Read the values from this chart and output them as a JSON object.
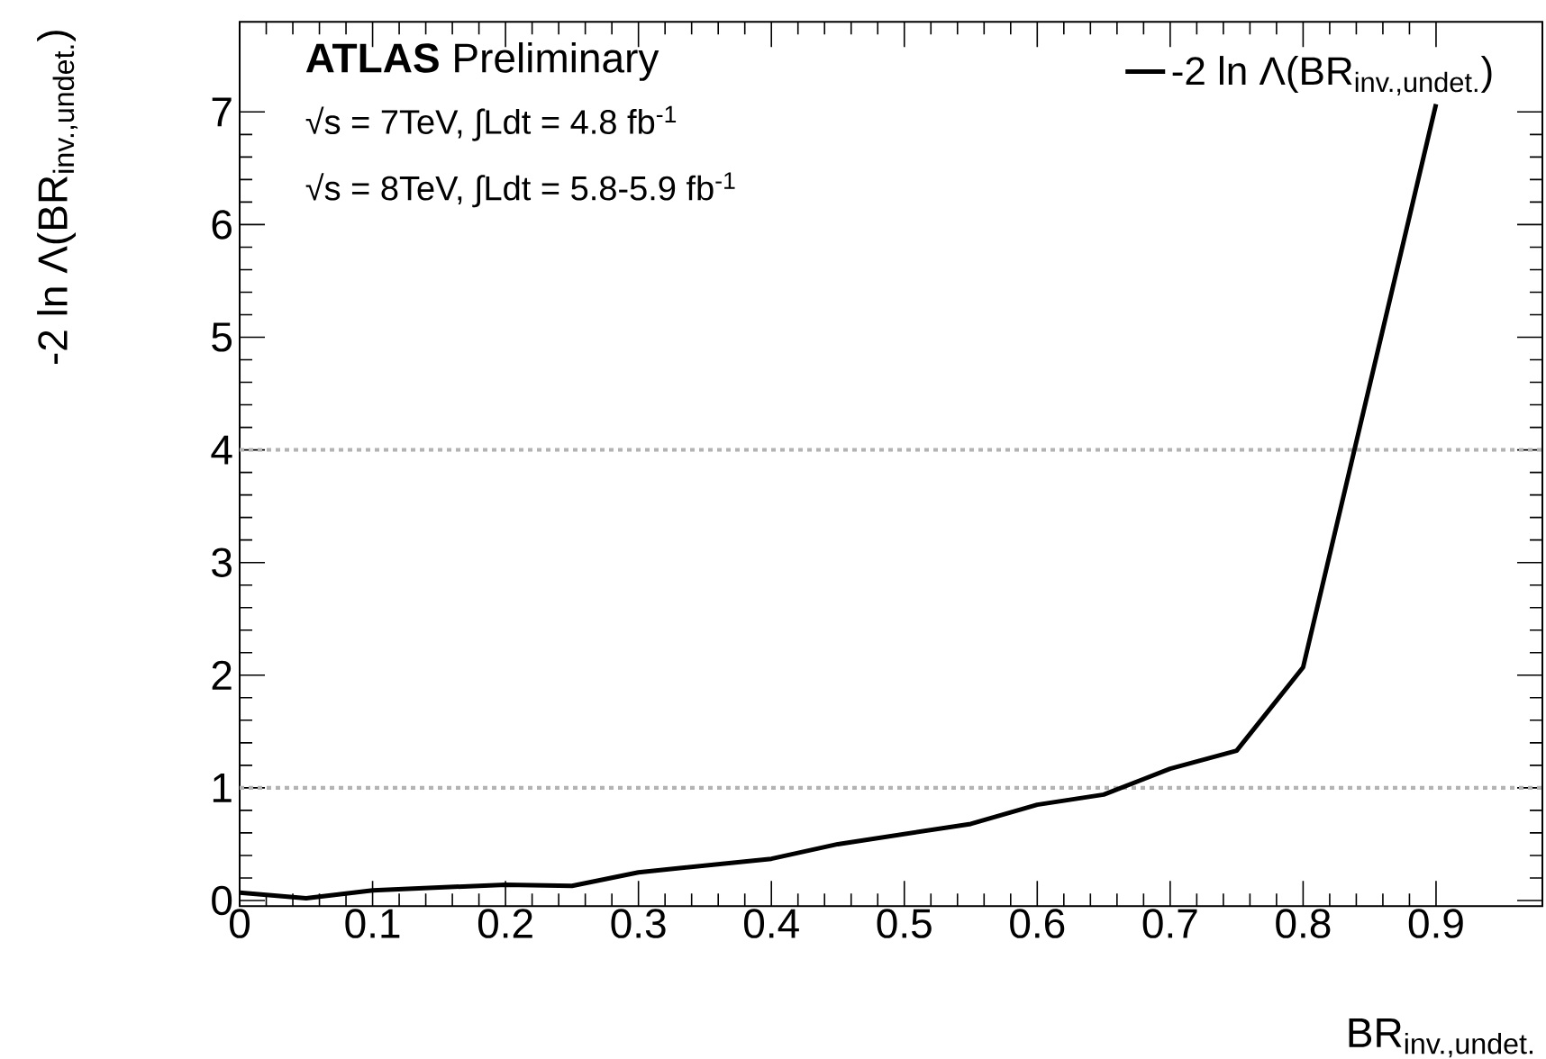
{
  "chart_data": {
    "type": "line",
    "xlabel": "BR$_{inv.,undet.}$",
    "ylabel": "-2 ln Λ(BR$_{inv.,undet.}$)",
    "annotations": [
      "**ATLAS** Preliminary",
      "√s = 7TeV, ∫Ldt = 4.8 fb$^{-1}$",
      "√s = 8TeV, ∫Ldt = 5.8-5.9 fb$^{-1}$"
    ],
    "x": [
      0,
      0.05,
      0.1,
      0.2,
      0.25,
      0.3,
      0.4,
      0.45,
      0.5,
      0.55,
      0.6,
      0.65,
      0.7,
      0.75,
      0.8,
      0.9
    ],
    "series": [
      {
        "name": "-2 ln Λ(BR$_{inv.,undet.}$)",
        "color": "#000000",
        "values": [
          0.07,
          0.02,
          0.09,
          0.14,
          0.13,
          0.25,
          0.37,
          0.5,
          0.59,
          0.68,
          0.85,
          0.94,
          1.17,
          1.33,
          2.07,
          7.07
        ]
      }
    ],
    "xlim": [
      0,
      0.98
    ],
    "ylim": [
      -0.05,
      7.8
    ],
    "xticks": [
      0,
      0.1,
      0.2,
      0.3,
      0.4,
      0.5,
      0.6,
      0.7,
      0.8,
      0.9
    ],
    "yticks": [
      0,
      1,
      2,
      3,
      4,
      5,
      6,
      7
    ],
    "ref_lines": [
      {
        "axis": "y",
        "value": 1,
        "color": "#b3b3b3",
        "line_style": "dotted"
      },
      {
        "axis": "y",
        "value": 4,
        "color": "#b3b3b3",
        "line_style": "dotted"
      }
    ],
    "legend": "top right",
    "grid": false,
    "marker": "none",
    "line_style": "solid"
  }
}
